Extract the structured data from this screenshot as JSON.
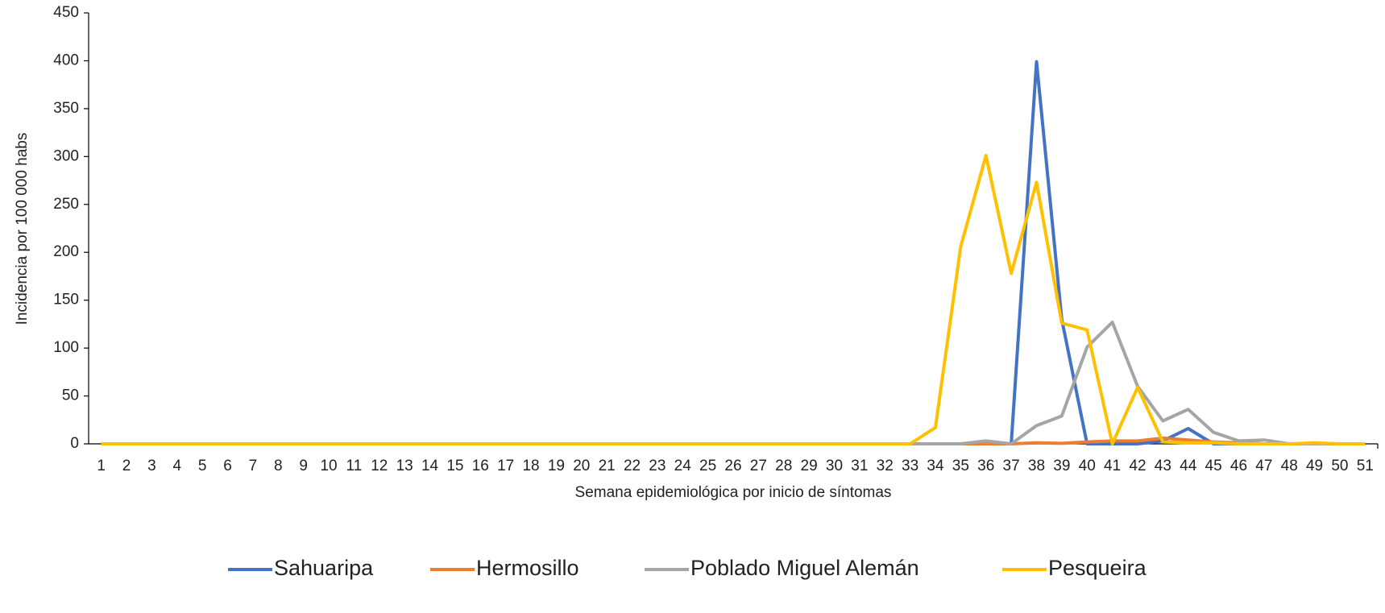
{
  "chart_data": {
    "type": "line",
    "x_label": "Semana epidemiológica por inicio de síntomas",
    "y_label": "Incidencia por 100 000 habs",
    "categories": [
      "1",
      "2",
      "3",
      "4",
      "5",
      "6",
      "7",
      "8",
      "9",
      "10",
      "11",
      "12",
      "13",
      "14",
      "15",
      "16",
      "17",
      "18",
      "19",
      "20",
      "21",
      "22",
      "23",
      "24",
      "25",
      "26",
      "27",
      "28",
      "29",
      "30",
      "31",
      "32",
      "33",
      "34",
      "35",
      "36",
      "37",
      "38",
      "39",
      "40",
      "41",
      "42",
      "43",
      "44",
      "45",
      "46",
      "47",
      "48",
      "49",
      "50",
      "51"
    ],
    "series": [
      {
        "name": "Sahuaripa",
        "color": "#4472c4",
        "values": [
          0,
          0,
          0,
          0,
          0,
          0,
          0,
          0,
          0,
          0,
          0,
          0,
          0,
          0,
          0,
          0,
          0,
          0,
          0,
          0,
          0,
          0,
          0,
          0,
          0,
          0,
          0,
          0,
          0,
          0,
          0,
          0,
          0,
          0,
          0,
          0,
          0,
          399,
          130,
          0,
          0,
          0,
          3,
          16,
          0,
          0,
          0,
          0,
          0,
          0,
          0
        ]
      },
      {
        "name": "Hermosillo",
        "color": "#ed7d31",
        "values": [
          0,
          0,
          0,
          0,
          0,
          0,
          0,
          0,
          0,
          0,
          0,
          0,
          0,
          0,
          0,
          0,
          0,
          0,
          0,
          0,
          0,
          0,
          0,
          0,
          0,
          0,
          0,
          0,
          0,
          0,
          0,
          0,
          0,
          0,
          0,
          0,
          0,
          1,
          0.5,
          2,
          3,
          3,
          6,
          4,
          2,
          1,
          0,
          0,
          0,
          0,
          0
        ]
      },
      {
        "name": "Poblado Miguel Alemán",
        "color": "#a5a5a5",
        "values": [
          0,
          0,
          0,
          0,
          0,
          0,
          0,
          0,
          0,
          0,
          0,
          0,
          0,
          0,
          0,
          0,
          0,
          0,
          0,
          0,
          0,
          0,
          0,
          0,
          0,
          0,
          0,
          0,
          0,
          0,
          0,
          0,
          0,
          0,
          0,
          3,
          0,
          19,
          29,
          101,
          127,
          60,
          24,
          36,
          12,
          3,
          4,
          0,
          0,
          0,
          0
        ]
      },
      {
        "name": "Pesqueira",
        "color": "#ffc000",
        "values": [
          0,
          0,
          0,
          0,
          0,
          0,
          0,
          0,
          0,
          0,
          0,
          0,
          0,
          0,
          0,
          0,
          0,
          0,
          0,
          0,
          0,
          0,
          0,
          0,
          0,
          0,
          0,
          0,
          0,
          0,
          0,
          0,
          0,
          17,
          206,
          301,
          178,
          273,
          126,
          119,
          0,
          59,
          2,
          1,
          1,
          0,
          0,
          0,
          1,
          0,
          0
        ]
      }
    ],
    "ylim": [
      0,
      450
    ],
    "yticks": [
      0,
      50,
      100,
      150,
      200,
      250,
      300,
      350,
      400,
      450
    ],
    "grid": false,
    "legend": "bottom"
  }
}
